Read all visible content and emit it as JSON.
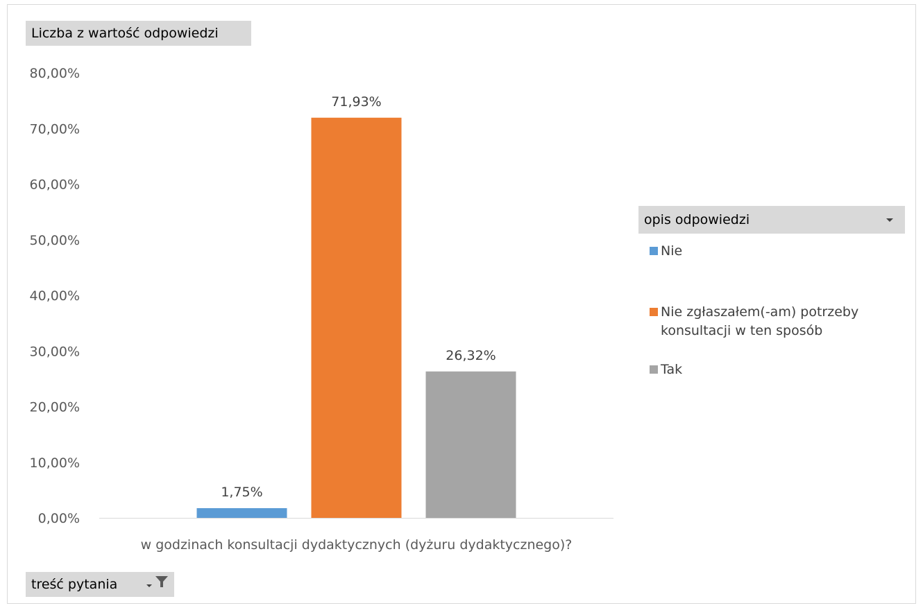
{
  "value_field_button": "Liczba z wartość odpowiedzi",
  "axis_field_button": "treść pytania",
  "legend": {
    "title": "opis odpowiedzi",
    "items": [
      {
        "label": "Nie",
        "color": "#5b9bd5"
      },
      {
        "label": "Nie zgłaszałem(-am) potrzeby konsultacji w ten sposób",
        "color": "#ed7d31"
      },
      {
        "label": "Tak",
        "color": "#a5a5a5"
      }
    ]
  },
  "chart_data": {
    "type": "bar",
    "title": "",
    "xlabel": "",
    "ylabel": "",
    "categories": [
      "w godzinach konsultacji dydaktycznych (dyżuru dydaktycznego)?"
    ],
    "series": [
      {
        "name": "Nie",
        "values": [
          1.75
        ],
        "label": "1,75%",
        "color": "#5b9bd5"
      },
      {
        "name": "Nie zgłaszałem(-am) potrzeby konsultacji w ten sposób",
        "values": [
          71.93
        ],
        "label": "71,93%",
        "color": "#ed7d31"
      },
      {
        "name": "Tak",
        "values": [
          26.32
        ],
        "label": "26,32%",
        "color": "#a5a5a5"
      }
    ],
    "ylim": [
      0,
      80
    ],
    "yticks": [
      0,
      10,
      20,
      30,
      40,
      50,
      60,
      70,
      80
    ],
    "ytick_labels": [
      "0,00%",
      "10,00%",
      "20,00%",
      "30,00%",
      "40,00%",
      "50,00%",
      "60,00%",
      "70,00%",
      "80,00%"
    ],
    "grid": false,
    "legend_position": "right"
  }
}
